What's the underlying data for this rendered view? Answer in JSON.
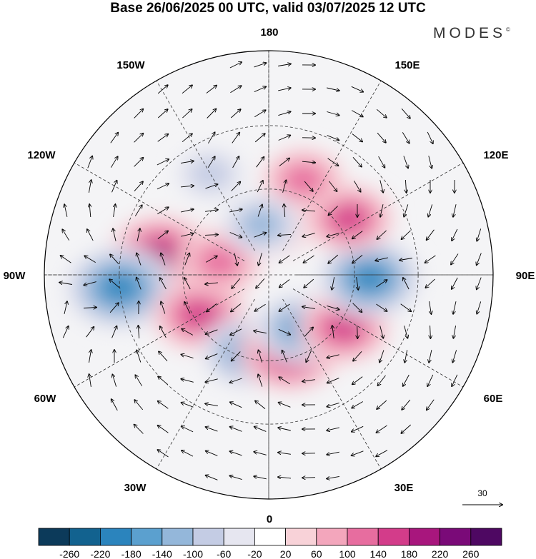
{
  "header": {
    "title": "Base 26/06/2025 00 UTC, valid 03/07/2025 12 UTC",
    "brand": "MODES",
    "brand_mark": "©"
  },
  "map": {
    "projection": "north-polar-stereographic",
    "longitude_labels": {
      "top": "180",
      "bottom": "0",
      "left": "90W",
      "right": "90E",
      "ul1": "150W",
      "ul2": "120W",
      "ur1": "150E",
      "ur2": "120E",
      "ll1": "60W",
      "ll2": "30W",
      "lr1": "60E",
      "lr2": "30E"
    },
    "vector_reference": "30",
    "anomalies": [
      {
        "lon": -100,
        "lat": 52,
        "value": 190,
        "name": "canada-east-low-neg"
      },
      {
        "lon": -85,
        "lat": 40,
        "value": -210,
        "name": "north-america-trough"
      },
      {
        "lon": -60,
        "lat": 62,
        "value": 160,
        "name": "labrador-ridge"
      },
      {
        "lon": -105,
        "lat": 72,
        "value": 130,
        "name": "arctic-canada-ridge"
      },
      {
        "lon": -15,
        "lat": 62,
        "value": -160,
        "name": "north-atlantic-trough"
      },
      {
        "lon": 15,
        "lat": 62,
        "value": 180,
        "name": "scandinavia-ridge"
      },
      {
        "lon": 30,
        "lat": 68,
        "value": -150,
        "name": "barents-trough"
      },
      {
        "lon": 55,
        "lat": 58,
        "value": 150,
        "name": "ural-ridge"
      },
      {
        "lon": 88,
        "lat": 55,
        "value": -190,
        "name": "siberia-trough"
      },
      {
        "lon": 125,
        "lat": 56,
        "value": 140,
        "name": "east-siberia-ridge"
      },
      {
        "lon": 160,
        "lat": 55,
        "value": 120,
        "name": "kamchatka-ridge"
      },
      {
        "lon": -150,
        "lat": 50,
        "value": -70,
        "name": "gulf-of-alaska-weak"
      },
      {
        "lon": 175,
        "lat": 73,
        "value": 100,
        "name": "chukchi-ridge"
      },
      {
        "lon": -172,
        "lat": 72,
        "value": -110,
        "name": "beaufort-trough"
      }
    ],
    "colorbar": {
      "labels": [
        "-260",
        "-220",
        "-180",
        "-140",
        "-100",
        "-60",
        "-20",
        "20",
        "60",
        "100",
        "140",
        "180",
        "220",
        "260"
      ],
      "colors": [
        "#0c3a5a",
        "#12628f",
        "#2b84bd",
        "#5ba0cf",
        "#94b7da",
        "#c4cce4",
        "#e6e6f0",
        "#ffffff",
        "#f8d2d8",
        "#f3a6bc",
        "#e76d9f",
        "#d33c8a",
        "#a8167d",
        "#7a0a78",
        "#4e0862"
      ]
    }
  }
}
